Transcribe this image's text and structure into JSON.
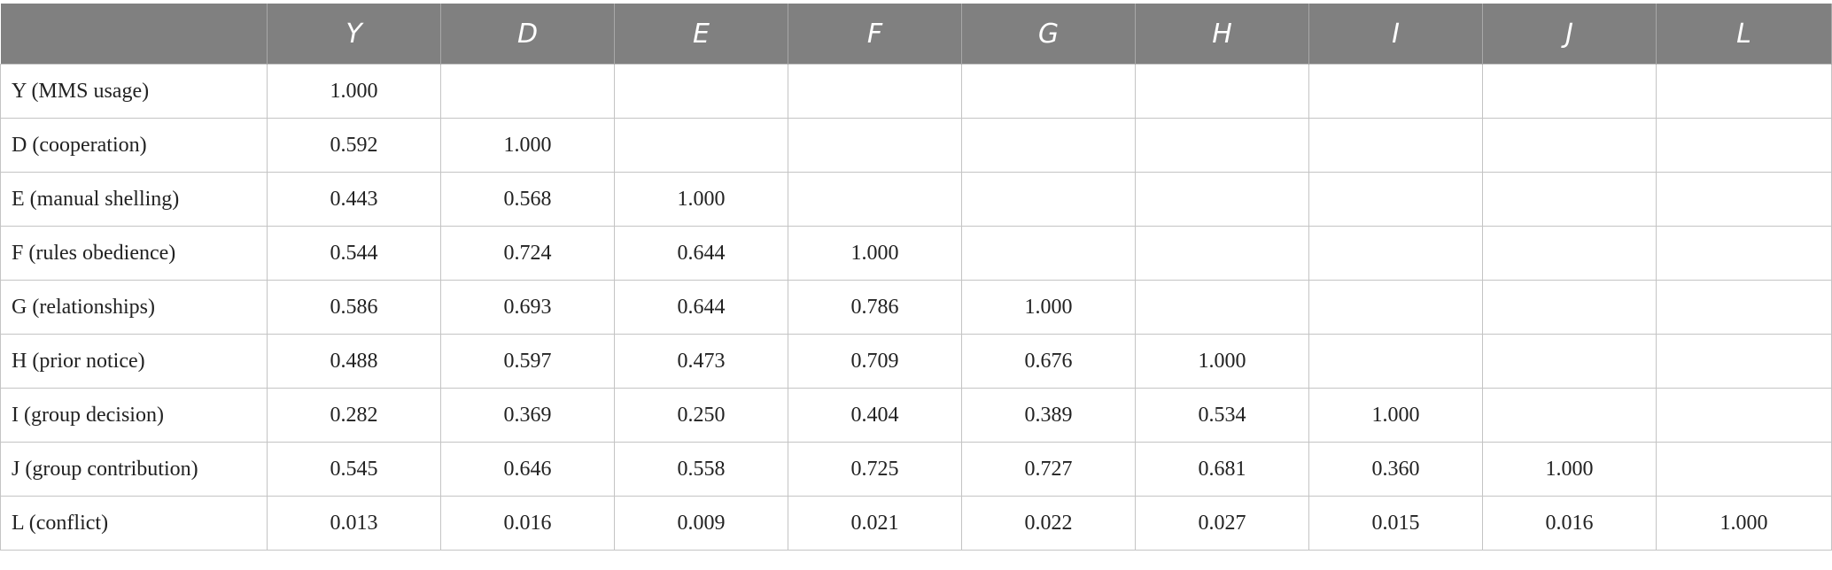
{
  "table": {
    "header": [
      "Y",
      "D",
      "E",
      "F",
      "G",
      "H",
      "I",
      "J",
      "L"
    ],
    "rows": [
      {
        "label": "Y (MMS usage)",
        "values": [
          "1.000"
        ]
      },
      {
        "label": "D (cooperation)",
        "values": [
          "0.592",
          "1.000"
        ]
      },
      {
        "label": "E (manual shelling)",
        "values": [
          "0.443",
          "0.568",
          "1.000"
        ]
      },
      {
        "label": "F (rules obedience)",
        "values": [
          "0.544",
          "0.724",
          "0.644",
          "1.000"
        ]
      },
      {
        "label": "G (relationships)",
        "values": [
          "0.586",
          "0.693",
          "0.644",
          "0.786",
          "1.000"
        ]
      },
      {
        "label": "H (prior notice)",
        "values": [
          "0.488",
          "0.597",
          "0.473",
          "0.709",
          "0.676",
          "1.000"
        ]
      },
      {
        "label": "I (group decision)",
        "values": [
          "0.282",
          "0.369",
          "0.250",
          "0.404",
          "0.389",
          "0.534",
          "1.000"
        ]
      },
      {
        "label": "J (group contribution)",
        "values": [
          "0.545",
          "0.646",
          "0.558",
          "0.725",
          "0.727",
          "0.681",
          "0.360",
          "1.000"
        ]
      },
      {
        "label": "L (conflict)",
        "values": [
          "0.013",
          "0.016",
          "0.009",
          "0.021",
          "0.022",
          "0.027",
          "0.015",
          "0.016",
          "1.000"
        ]
      }
    ]
  }
}
